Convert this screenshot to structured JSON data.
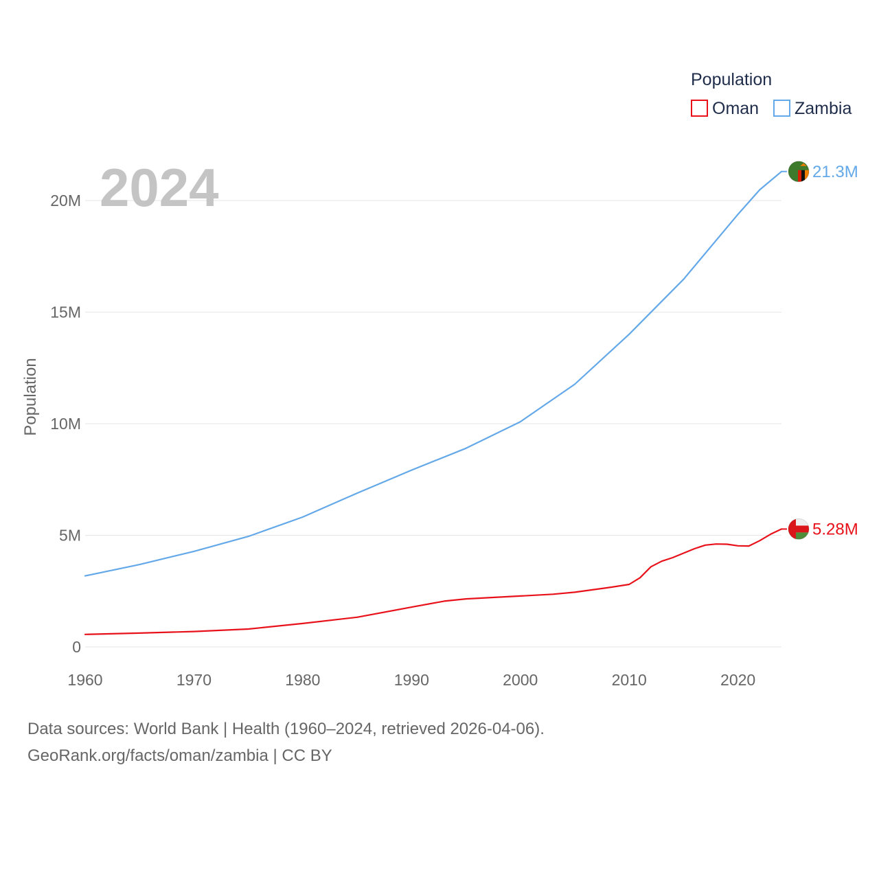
{
  "chart_data": {
    "type": "line",
    "year_label": "2024",
    "legend_title": "Population",
    "ylabel": "Population",
    "xlabel": "",
    "xlim": [
      1960,
      2024
    ],
    "ylim": [
      0,
      22000000
    ],
    "x_ticks": [
      1960,
      1970,
      1980,
      1990,
      2000,
      2010,
      2020
    ],
    "y_ticks": [
      {
        "value": 0,
        "label": "0"
      },
      {
        "value": 5000000,
        "label": "5M"
      },
      {
        "value": 10000000,
        "label": "10M"
      },
      {
        "value": 15000000,
        "label": "15M"
      },
      {
        "value": 20000000,
        "label": "20M"
      }
    ],
    "grid": true,
    "series": [
      {
        "name": "Oman",
        "color": "#e8111a",
        "end_label": "5.28M",
        "flag_icon": "oman-flag-icon",
        "points": [
          [
            1960,
            560000
          ],
          [
            1965,
            620000
          ],
          [
            1970,
            690000
          ],
          [
            1975,
            800000
          ],
          [
            1980,
            1050000
          ],
          [
            1985,
            1330000
          ],
          [
            1990,
            1780000
          ],
          [
            1993,
            2050000
          ],
          [
            1995,
            2150000
          ],
          [
            2000,
            2280000
          ],
          [
            2003,
            2360000
          ],
          [
            2005,
            2450000
          ],
          [
            2008,
            2650000
          ],
          [
            2010,
            2800000
          ],
          [
            2011,
            3100000
          ],
          [
            2012,
            3590000
          ],
          [
            2013,
            3840000
          ],
          [
            2014,
            4000000
          ],
          [
            2015,
            4200000
          ],
          [
            2016,
            4400000
          ],
          [
            2017,
            4560000
          ],
          [
            2018,
            4610000
          ],
          [
            2019,
            4600000
          ],
          [
            2020,
            4530000
          ],
          [
            2021,
            4520000
          ],
          [
            2022,
            4760000
          ],
          [
            2023,
            5050000
          ],
          [
            2024,
            5280000
          ]
        ]
      },
      {
        "name": "Zambia",
        "color": "#63a8e8",
        "end_label": "21.3M",
        "flag_icon": "zambia-flag-icon",
        "points": [
          [
            1960,
            3180000
          ],
          [
            1965,
            3690000
          ],
          [
            1970,
            4280000
          ],
          [
            1975,
            4950000
          ],
          [
            1980,
            5820000
          ],
          [
            1985,
            6890000
          ],
          [
            1990,
            7920000
          ],
          [
            1995,
            8900000
          ],
          [
            2000,
            10090000
          ],
          [
            2005,
            11770000
          ],
          [
            2010,
            14010000
          ],
          [
            2015,
            16470000
          ],
          [
            2020,
            19380000
          ],
          [
            2022,
            20480000
          ],
          [
            2024,
            21300000
          ]
        ]
      }
    ],
    "source_line_1": "Data sources: World Bank | Health (1960–2024, retrieved 2026-04-06).",
    "source_line_2": "GeoRank.org/facts/oman/zambia | CC BY"
  }
}
